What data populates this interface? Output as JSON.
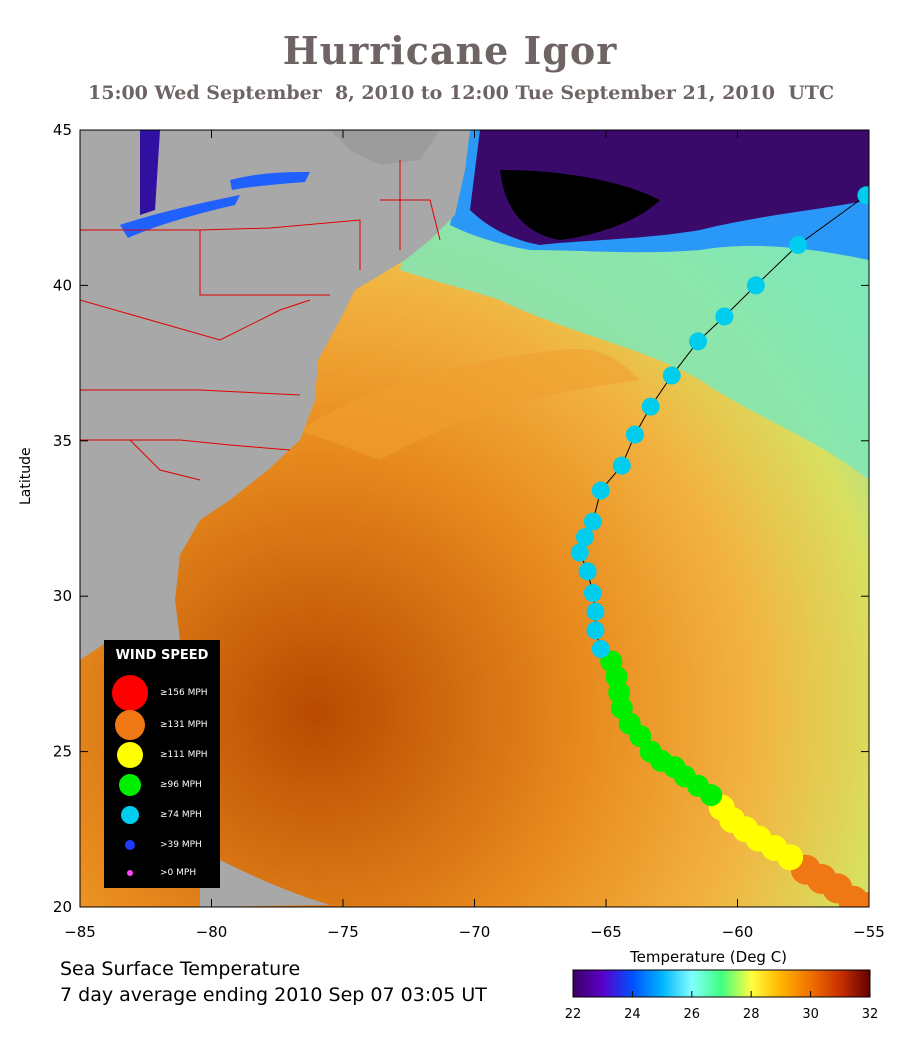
{
  "title": "Hurricane Igor",
  "subtitle": "15:00 Wed September  8, 2010 to 12:00 Tue September 21, 2010  UTC",
  "map": {
    "ylabel": "Latitude",
    "lon_range": [
      -85,
      -55
    ],
    "lat_range": [
      20,
      45
    ],
    "x_ticks": [
      "−85",
      "−80",
      "−75",
      "−70",
      "−65",
      "−60",
      "−55"
    ],
    "y_ticks": [
      "45",
      "40",
      "35",
      "30",
      "25",
      "20"
    ]
  },
  "legend": {
    "title": "WIND SPEED",
    "items": [
      {
        "label": "≥156 MPH",
        "color": "#ff0000"
      },
      {
        "label": "≥131 MPH",
        "color": "#f07814"
      },
      {
        "label": "≥111 MPH",
        "color": "#ffff00"
      },
      {
        "label": "≥96 MPH",
        "color": "#00ee00"
      },
      {
        "label": "≥74 MPH",
        "color": "#00ccee"
      },
      {
        "label": ">39 MPH",
        "color": "#1e3cff"
      },
      {
        "label": ">0 MPH",
        "color": "#ff44ff"
      }
    ]
  },
  "footer": {
    "line1": "Sea Surface Temperature",
    "line2": "7 day average ending 2010 Sep 07 03:05 UT"
  },
  "colorbar": {
    "title": "Temperature (Deg C)",
    "ticks": [
      "22",
      "24",
      "26",
      "28",
      "30",
      "32"
    ],
    "colors": [
      "#3c0064",
      "#5a00c8",
      "#0050ff",
      "#00b4ff",
      "#80ffff",
      "#40ff80",
      "#ffff40",
      "#ffb400",
      "#f07000",
      "#c83000",
      "#640000"
    ]
  },
  "track": [
    {
      "lon": -55.0,
      "lat": 20.0,
      "cat": 1
    },
    {
      "lon": -55.6,
      "lat": 20.2,
      "cat": 1
    },
    {
      "lon": -56.2,
      "lat": 20.6,
      "cat": 1
    },
    {
      "lon": -56.8,
      "lat": 20.9,
      "cat": 1
    },
    {
      "lon": -57.4,
      "lat": 21.2,
      "cat": 1
    },
    {
      "lon": -58.0,
      "lat": 21.6,
      "cat": 2
    },
    {
      "lon": -58.6,
      "lat": 21.9,
      "cat": 2
    },
    {
      "lon": -59.2,
      "lat": 22.2,
      "cat": 2
    },
    {
      "lon": -59.7,
      "lat": 22.5,
      "cat": 2
    },
    {
      "lon": -60.2,
      "lat": 22.8,
      "cat": 2
    },
    {
      "lon": -60.6,
      "lat": 23.2,
      "cat": 2
    },
    {
      "lon": -61.0,
      "lat": 23.6,
      "cat": 3
    },
    {
      "lon": -61.5,
      "lat": 23.9,
      "cat": 3
    },
    {
      "lon": -62.0,
      "lat": 24.2,
      "cat": 3
    },
    {
      "lon": -62.4,
      "lat": 24.5,
      "cat": 3
    },
    {
      "lon": -62.9,
      "lat": 24.7,
      "cat": 3
    },
    {
      "lon": -63.3,
      "lat": 25.0,
      "cat": 3
    },
    {
      "lon": -63.7,
      "lat": 25.5,
      "cat": 3
    },
    {
      "lon": -64.1,
      "lat": 25.9,
      "cat": 3
    },
    {
      "lon": -64.4,
      "lat": 26.4,
      "cat": 3
    },
    {
      "lon": -64.5,
      "lat": 26.9,
      "cat": 3
    },
    {
      "lon": -64.6,
      "lat": 27.4,
      "cat": 3
    },
    {
      "lon": -64.8,
      "lat": 27.9,
      "cat": 3
    },
    {
      "lon": -65.2,
      "lat": 28.3,
      "cat": 4
    },
    {
      "lon": -65.4,
      "lat": 28.9,
      "cat": 4
    },
    {
      "lon": -65.4,
      "lat": 29.5,
      "cat": 4
    },
    {
      "lon": -65.5,
      "lat": 30.1,
      "cat": 4
    },
    {
      "lon": -65.7,
      "lat": 30.8,
      "cat": 4
    },
    {
      "lon": -66.0,
      "lat": 31.4,
      "cat": 4
    },
    {
      "lon": -65.8,
      "lat": 31.9,
      "cat": 4
    },
    {
      "lon": -65.5,
      "lat": 32.4,
      "cat": 4
    },
    {
      "lon": -65.2,
      "lat": 33.4,
      "cat": 4
    },
    {
      "lon": -64.4,
      "lat": 34.2,
      "cat": 4
    },
    {
      "lon": -63.9,
      "lat": 35.2,
      "cat": 4
    },
    {
      "lon": -63.3,
      "lat": 36.1,
      "cat": 4
    },
    {
      "lon": -62.5,
      "lat": 37.1,
      "cat": 4
    },
    {
      "lon": -61.5,
      "lat": 38.2,
      "cat": 4
    },
    {
      "lon": -60.5,
      "lat": 39.0,
      "cat": 4
    },
    {
      "lon": -59.3,
      "lat": 40.0,
      "cat": 4
    },
    {
      "lon": -57.7,
      "lat": 41.3,
      "cat": 4
    },
    {
      "lon": -55.1,
      "lat": 42.9,
      "cat": 4
    }
  ]
}
